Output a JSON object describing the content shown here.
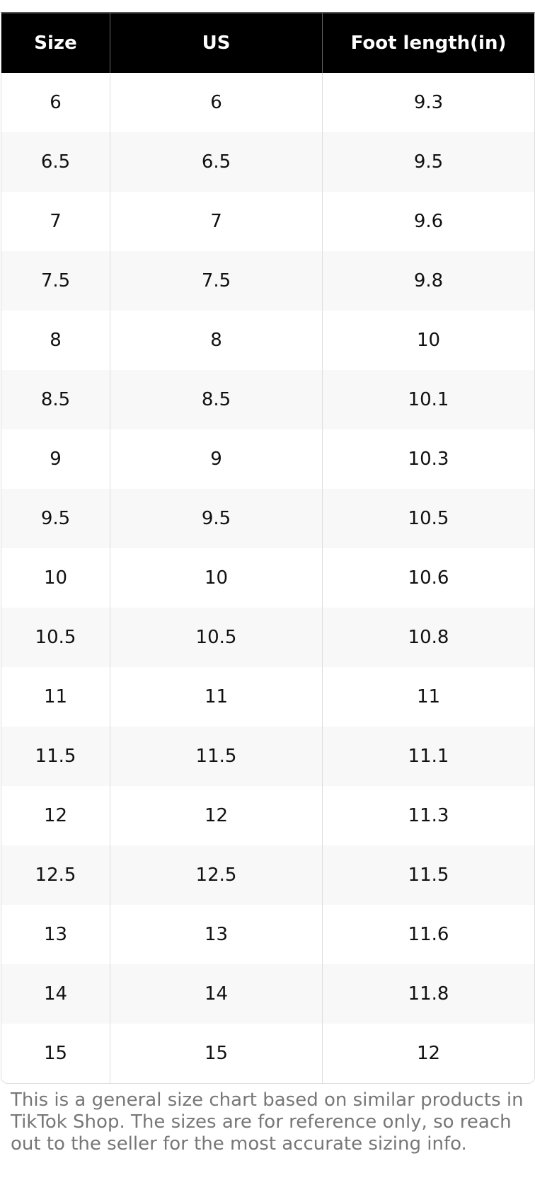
{
  "table": {
    "headers": [
      "Size",
      "US",
      "Foot length(in)"
    ],
    "rows": [
      [
        "6",
        "6",
        "9.3"
      ],
      [
        "6.5",
        "6.5",
        "9.5"
      ],
      [
        "7",
        "7",
        "9.6"
      ],
      [
        "7.5",
        "7.5",
        "9.8"
      ],
      [
        "8",
        "8",
        "10"
      ],
      [
        "8.5",
        "8.5",
        "10.1"
      ],
      [
        "9",
        "9",
        "10.3"
      ],
      [
        "9.5",
        "9.5",
        "10.5"
      ],
      [
        "10",
        "10",
        "10.6"
      ],
      [
        "10.5",
        "10.5",
        "10.8"
      ],
      [
        "11",
        "11",
        "11"
      ],
      [
        "11.5",
        "11.5",
        "11.1"
      ],
      [
        "12",
        "12",
        "11.3"
      ],
      [
        "12.5",
        "12.5",
        "11.5"
      ],
      [
        "13",
        "13",
        "11.6"
      ],
      [
        "14",
        "14",
        "11.8"
      ],
      [
        "15",
        "15",
        "12"
      ]
    ]
  },
  "note": "This is a general size chart based on similar products in TikTok Shop. The sizes are for reference only, so reach out to the seller for the most accurate sizing info."
}
